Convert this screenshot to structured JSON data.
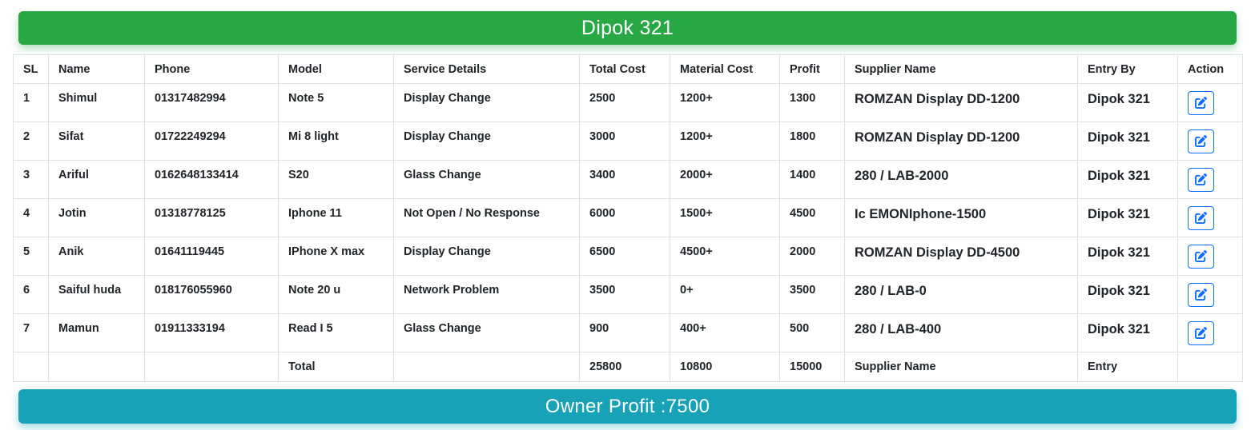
{
  "header": {
    "title": "Dipok 321"
  },
  "table": {
    "columns": [
      "SL",
      "Name",
      "Phone",
      "Model",
      "Service Details",
      "Total Cost",
      "Material Cost",
      "Profit",
      "Supplier Name",
      "Entry By",
      "Action"
    ],
    "rows": [
      {
        "sl": "1",
        "name": "Shimul",
        "phone": "01317482994",
        "model": "Note 5",
        "service": "Display Change",
        "total": "2500",
        "material": "1200+",
        "profit": "1300",
        "supplier": "ROMZAN Display DD-1200",
        "entry": "Dipok 321"
      },
      {
        "sl": "2",
        "name": "Sifat",
        "phone": "01722249294",
        "model": "Mi 8 light",
        "service": "Display Change",
        "total": "3000",
        "material": "1200+",
        "profit": "1800",
        "supplier": "ROMZAN Display DD-1200",
        "entry": "Dipok 321"
      },
      {
        "sl": "3",
        "name": "Ariful",
        "phone": "0162648133414",
        "model": "S20",
        "service": "Glass Change",
        "total": "3400",
        "material": "2000+",
        "profit": "1400",
        "supplier": "280 / LAB-2000",
        "entry": "Dipok 321"
      },
      {
        "sl": "4",
        "name": "Jotin",
        "phone": "01318778125",
        "model": "Iphone 11",
        "service": "Not Open / No Response",
        "total": "6000",
        "material": "1500+",
        "profit": "4500",
        "supplier": "Ic EMONIphone-1500",
        "entry": "Dipok 321"
      },
      {
        "sl": "5",
        "name": "Anik",
        "phone": "01641119445",
        "model": "IPhone X max",
        "service": "Display Change",
        "total": "6500",
        "material": "4500+",
        "profit": "2000",
        "supplier": "ROMZAN Display DD-4500",
        "entry": "Dipok 321"
      },
      {
        "sl": "6",
        "name": "Saiful huda",
        "phone": "018176055960",
        "model": "Note 20 u",
        "service": "Network Problem",
        "total": "3500",
        "material": "0+",
        "profit": "3500",
        "supplier": "280 / LAB-0",
        "entry": "Dipok 321"
      },
      {
        "sl": "7",
        "name": "Mamun",
        "phone": "01911333194",
        "model": "Read I 5",
        "service": "Glass Change",
        "total": "900",
        "material": "400+",
        "profit": "500",
        "supplier": "280 / LAB-400",
        "entry": "Dipok 321"
      }
    ],
    "total_row": {
      "sl": "",
      "name": "",
      "phone": "",
      "model": "Total",
      "service": "",
      "total": "25800",
      "material": "10800",
      "profit": "15000",
      "supplier": "Supplier Name",
      "entry": "Entry"
    }
  },
  "footer": {
    "owner_profit": "Owner Profit :7500"
  },
  "icons": {
    "edit": "edit-icon"
  },
  "colors": {
    "header_bg": "#28a745",
    "footer_bg": "#17a2b8",
    "action_blue": "#0d6efd",
    "table_border": "#dee2e6",
    "text": "#212529"
  }
}
